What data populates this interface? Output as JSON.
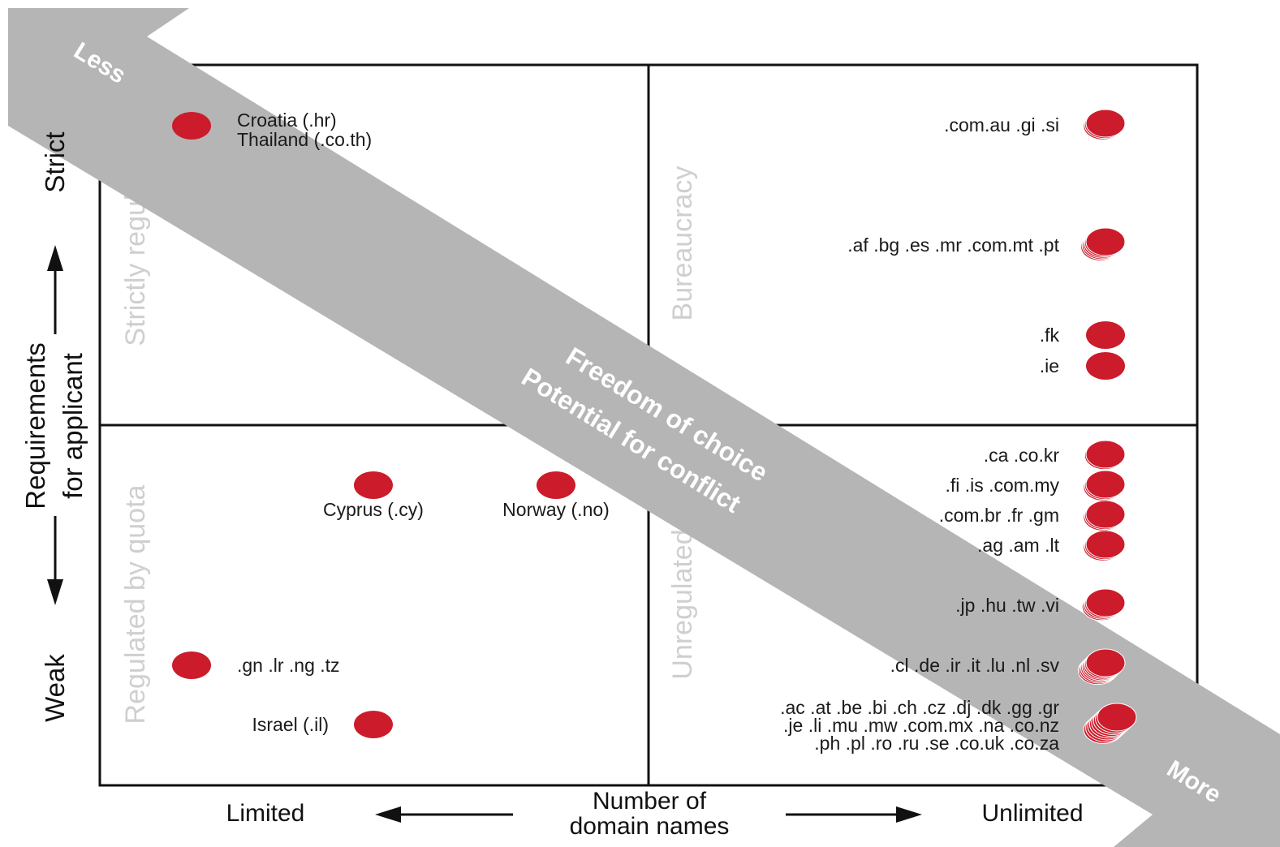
{
  "axes": {
    "y_title_line1": "Requirements",
    "y_title_line2": "for applicant",
    "y_high": "Strict",
    "y_low": "Weak",
    "x_title_line1": "Number of",
    "x_title_line2": "domain names",
    "x_low": "Limited",
    "x_high": "Unlimited"
  },
  "quadrants": {
    "top_left": "Strictly regulated",
    "top_right": "Bureaucracy",
    "bottom_left": "Regulated by quota",
    "bottom_right": "Unregulated"
  },
  "band": {
    "start": "Less",
    "end": "More",
    "line1": "Freedom of choice",
    "line2": "Potential for conflict"
  },
  "points": {
    "croatia_thailand": [
      "Croatia (.hr)",
      "Thailand (.co.th)"
    ],
    "cyprus": "Cyprus (.cy)",
    "norway": "Norway (.no)",
    "gn_group": ".gn .lr .ng .tz",
    "israel": "Israel (.il)",
    "com_au": ".com.au .gi .si",
    "af_group": ".af .bg .es .mr .com.mt .pt",
    "fk": ".fk",
    "ie": ".ie",
    "ca_group": ".ca .co.kr",
    "fi_group": ".fi .is .com.my",
    "com_br_group": ".com.br .fr .gm",
    "ag_group": ".ag .am .lt",
    "jp_group": ".jp .hu .tw .vi",
    "cl_group": ".cl .de .ir .it .lu .nl .sv",
    "big_group": [
      ".ac .at .be .bi .ch .cz .dj .dk .gg .gr",
      ".je .li .mu .mw .com.mx .na .co.nz",
      ".ph .pl .ro .ru .se .co.uk .co.za"
    ]
  },
  "colors": {
    "dot": "#cc1b2b",
    "band": "#b5b5b5",
    "quadrant_label": "#cfcfcf",
    "frame": "#111111"
  }
}
